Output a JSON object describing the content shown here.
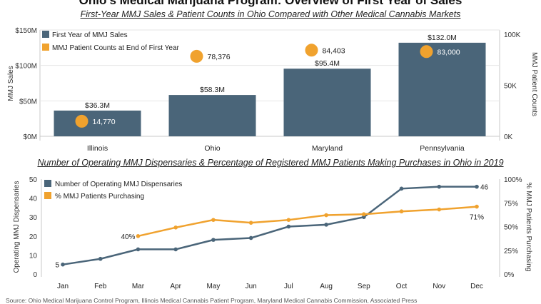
{
  "title": "Ohio’s Medical Marijuana Program: Overview of First Year of Sales",
  "source": "Source: Ohio Medical Marijuana Control Program, Illinois Medical Cannabis Patient Program, Maryland Medical Cannabis Commission, Associated Press",
  "colors": {
    "bar": "#4a6579",
    "dot": "#f0a22e",
    "grid": "#e6e6e6"
  },
  "chart_data": [
    {
      "type": "bar",
      "title": "First-Year MMJ Sales & Patient Counts in Ohio Compared with Other Medical Cannabis Markets",
      "categories": [
        "Illinois",
        "Ohio",
        "Maryland",
        "Pennsylvania"
      ],
      "ylabel": "MMJ Sales",
      "y2label": "MMJ Patient Counts",
      "ylim": [
        0,
        150
      ],
      "yticks": [
        "$0M",
        "$50M",
        "$100M",
        "$150M"
      ],
      "y2lim": [
        0,
        100000
      ],
      "y2ticks": [
        "0K",
        "50K",
        "100K"
      ],
      "legend_position": "top-left",
      "series": [
        {
          "name": "First Year of MMJ Sales",
          "type": "bar",
          "axis": "left",
          "values": [
            36.3,
            58.3,
            95.4,
            132.0
          ],
          "labels": [
            "$36.3M",
            "$58.3M",
            "$95.4M",
            "$132.0M"
          ]
        },
        {
          "name": "MMJ Patient Counts at End of First Year",
          "type": "scatter",
          "axis": "right",
          "values": [
            14770,
            78376,
            84403,
            83000
          ],
          "labels": [
            "14,770",
            "78,376",
            "84,403",
            "83,000"
          ]
        }
      ]
    },
    {
      "type": "line",
      "title": "Number of Operating MMJ Dispensaries & Percentage of Registered MMJ Patients Making Purchases in Ohio in 2019",
      "categories": [
        "Jan",
        "Feb",
        "Mar",
        "Apr",
        "May",
        "Jun",
        "Jul",
        "Aug",
        "Sep",
        "Oct",
        "Nov",
        "Dec"
      ],
      "ylabel": "Operating MMJ Dispensaries",
      "y2label": "% MMJ Patients Purchasing",
      "ylim": [
        0,
        50
      ],
      "yticks": [
        "0",
        "10",
        "20",
        "30",
        "40",
        "50"
      ],
      "y2lim": [
        0,
        100
      ],
      "y2ticks": [
        "0%",
        "25%",
        "50%",
        "75%",
        "100%"
      ],
      "legend_position": "top-left",
      "series": [
        {
          "name": "Number of Operating MMJ Dispensaries",
          "axis": "left",
          "values": [
            5,
            8,
            13,
            13,
            18,
            19,
            25,
            26,
            30,
            45,
            46,
            46
          ],
          "labels": [
            "5",
            "",
            "",
            "",
            "",
            "",
            "",
            "",
            "",
            "",
            "",
            "46"
          ]
        },
        {
          "name": "% MMJ Patients Purchasing",
          "axis": "right",
          "values": [
            null,
            null,
            40,
            49,
            57,
            54,
            57,
            62,
            63,
            66,
            68,
            71
          ],
          "labels": [
            "",
            "",
            "40%",
            "",
            "",
            "",
            "",
            "",
            "",
            "",
            "",
            "71%"
          ]
        }
      ]
    }
  ]
}
